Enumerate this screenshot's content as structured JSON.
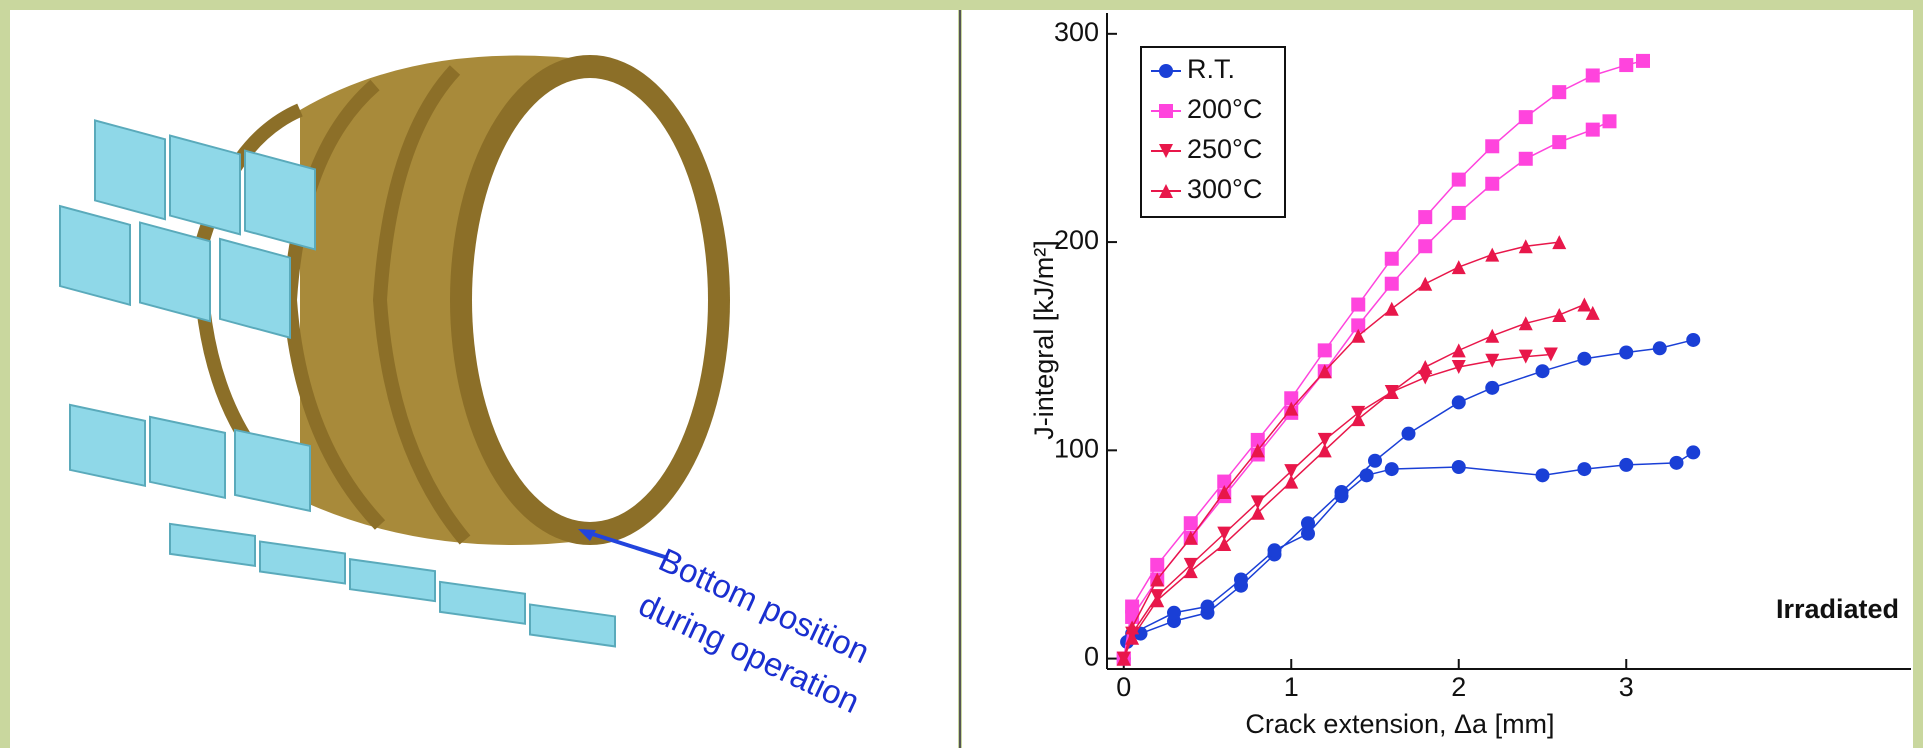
{
  "figure": {
    "annotation": [
      "Bottom position",
      "during operation"
    ]
  },
  "chart_data": {
    "type": "line",
    "xlabel": "Crack extension, Δa [mm]",
    "ylabel": "J-integral [kJ/m²]",
    "annotation": "Irradiated",
    "xlim": [
      -0.1,
      4.7
    ],
    "ylim": [
      -5,
      310
    ],
    "xticks": [
      0,
      1,
      2,
      3
    ],
    "yticks": [
      0,
      100,
      200,
      300
    ],
    "legend": "upper left",
    "series": [
      {
        "name": "R.T.",
        "color": "#1a3fd6",
        "marker": "circle",
        "x": [
          0,
          0.02,
          0.1,
          0.3,
          0.5,
          0.7,
          0.9,
          1.1,
          1.3,
          1.5,
          1.7,
          2.0,
          2.2,
          2.5,
          2.75,
          3.0,
          3.2,
          3.4,
          null,
          0,
          0.05,
          0.3,
          0.5,
          0.7,
          0.9,
          1.1,
          1.3,
          1.45,
          1.6,
          2.0,
          2.5,
          2.75,
          3.0,
          3.3,
          3.4
        ],
        "values": [
          0,
          8,
          12,
          18,
          22,
          35,
          50,
          65,
          80,
          95,
          108,
          123,
          130,
          138,
          144,
          147,
          149,
          153,
          null,
          0,
          12,
          22,
          25,
          38,
          52,
          60,
          78,
          88,
          91,
          92,
          88,
          91,
          93,
          94,
          99
        ]
      },
      {
        "name": "200°C",
        "color": "#ff44dd",
        "marker": "square",
        "x": [
          0,
          0.05,
          0.2,
          0.4,
          0.6,
          0.8,
          1.0,
          1.2,
          1.4,
          1.6,
          1.8,
          2.0,
          2.2,
          2.4,
          2.6,
          2.8,
          3.0,
          3.1,
          null,
          0,
          0.05,
          0.2,
          0.4,
          0.6,
          0.8,
          1.0,
          1.2,
          1.4,
          1.6,
          1.8,
          2.0,
          2.2,
          2.4,
          2.6,
          2.8,
          2.9
        ],
        "values": [
          0,
          25,
          45,
          65,
          85,
          105,
          125,
          148,
          170,
          192,
          212,
          230,
          246,
          260,
          272,
          280,
          285,
          287,
          null,
          0,
          20,
          38,
          58,
          78,
          98,
          118,
          138,
          160,
          180,
          198,
          214,
          228,
          240,
          248,
          254,
          258
        ]
      },
      {
        "name": "250°C",
        "color": "#e8174a",
        "marker": "triangle-down",
        "x": [
          0,
          0.05,
          0.2,
          0.4,
          0.6,
          0.8,
          1.0,
          1.2,
          1.4,
          1.6,
          1.8,
          2.0,
          2.2,
          2.4,
          2.55
        ],
        "values": [
          0,
          12,
          30,
          45,
          60,
          75,
          90,
          105,
          118,
          128,
          135,
          140,
          143,
          145,
          146
        ]
      },
      {
        "name": "300°C",
        "color": "#e8174a",
        "marker": "triangle-up",
        "x": [
          0,
          0.05,
          0.2,
          0.4,
          0.6,
          0.8,
          1.0,
          1.2,
          1.4,
          1.6,
          1.8,
          2.0,
          2.2,
          2.4,
          2.6,
          null,
          0,
          0.05,
          0.2,
          0.4,
          0.6,
          0.8,
          1.0,
          1.2,
          1.4,
          1.6,
          1.8,
          2.0,
          2.2,
          2.4,
          2.6,
          2.75,
          2.8
        ],
        "values": [
          0,
          15,
          38,
          58,
          80,
          100,
          120,
          138,
          155,
          168,
          180,
          188,
          194,
          198,
          200,
          null,
          0,
          10,
          28,
          42,
          55,
          70,
          85,
          100,
          115,
          128,
          140,
          148,
          155,
          161,
          165,
          170,
          166
        ]
      }
    ]
  }
}
